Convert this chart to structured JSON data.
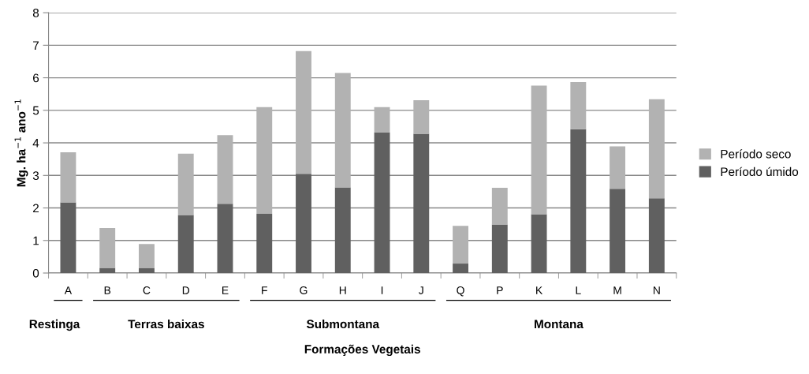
{
  "chart_data": {
    "type": "bar",
    "stacked": true,
    "xlabel": "Formações Vegetais",
    "ylabel": "Mg. ha$^{−1}$ ano$^{−1}$",
    "categories": [
      "A",
      "B",
      "C",
      "D",
      "E",
      "F",
      "G",
      "H",
      "I",
      "J",
      "Q",
      "P",
      "K",
      "L",
      "M",
      "N"
    ],
    "series": [
      {
        "name": "Período úmido",
        "color": "#606060",
        "values": [
          2.17,
          0.16,
          0.16,
          1.78,
          2.13,
          1.82,
          3.05,
          2.63,
          4.32,
          4.28,
          0.29,
          1.49,
          1.81,
          4.42,
          2.59,
          2.3
        ]
      },
      {
        "name": "Período seco",
        "color": "#b2b2b2",
        "values": [
          1.54,
          1.22,
          0.73,
          1.89,
          2.11,
          3.28,
          3.77,
          3.52,
          0.78,
          1.03,
          1.16,
          1.13,
          3.95,
          1.45,
          1.3,
          3.04
        ]
      }
    ],
    "annotations": [
      "Restinga",
      "Terras baixas",
      "Submontana",
      "Montana"
    ],
    "ylim": [
      0,
      8
    ],
    "yticks": [
      0,
      1,
      2,
      3,
      4,
      5,
      6,
      7,
      8
    ],
    "grid": "y",
    "legend": "right"
  }
}
